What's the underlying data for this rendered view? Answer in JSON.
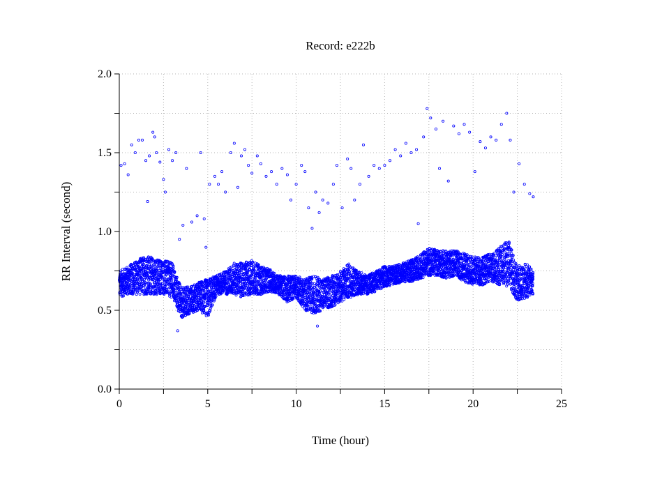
{
  "chart_data": {
    "type": "scatter",
    "title": "Record:  e222b",
    "xlabel": "Time (hour)",
    "ylabel": "RR Interval (second)",
    "xlim": [
      0,
      25
    ],
    "ylim": [
      0,
      2.0
    ],
    "xticks": [
      "0",
      "5",
      "10",
      "15",
      "20",
      "25"
    ],
    "xtick_values": [
      0,
      5,
      10,
      15,
      20,
      25
    ],
    "yticks": [
      "0.0",
      "0.5",
      "1.0",
      "1.5",
      "2.0"
    ],
    "ytick_values": [
      0,
      0.5,
      1.0,
      1.5,
      2.0
    ],
    "grid": true,
    "grid_step_x": 2.5,
    "grid_step_y": 0.25,
    "marker_color": "#0000ff",
    "main_band": {
      "description_note": "dense RR band, low/high envelope per time",
      "x": [
        0,
        0.5,
        1,
        1.5,
        2,
        2.5,
        3,
        3.3,
        3.5,
        4,
        4.5,
        5,
        5.5,
        6,
        6.5,
        7,
        7.5,
        8,
        8.5,
        9,
        9.5,
        10,
        10.5,
        11,
        11.5,
        12,
        12.5,
        13,
        13.5,
        14,
        14.5,
        15,
        15.5,
        16,
        16.5,
        17,
        17.5,
        18,
        18.5,
        19,
        19.5,
        20,
        20.5,
        21,
        21.5,
        22,
        22.5,
        23,
        23.4
      ],
      "low": [
        0.58,
        0.6,
        0.6,
        0.6,
        0.6,
        0.6,
        0.58,
        0.5,
        0.45,
        0.48,
        0.5,
        0.45,
        0.6,
        0.6,
        0.6,
        0.58,
        0.6,
        0.6,
        0.62,
        0.6,
        0.55,
        0.58,
        0.5,
        0.48,
        0.5,
        0.52,
        0.55,
        0.58,
        0.6,
        0.6,
        0.62,
        0.65,
        0.66,
        0.68,
        0.68,
        0.7,
        0.72,
        0.72,
        0.7,
        0.72,
        0.68,
        0.66,
        0.66,
        0.68,
        0.66,
        0.65,
        0.56,
        0.58,
        0.6
      ],
      "high": [
        0.75,
        0.78,
        0.82,
        0.85,
        0.83,
        0.82,
        0.8,
        0.7,
        0.65,
        0.65,
        0.68,
        0.7,
        0.72,
        0.75,
        0.8,
        0.8,
        0.82,
        0.78,
        0.76,
        0.72,
        0.72,
        0.72,
        0.7,
        0.72,
        0.7,
        0.72,
        0.75,
        0.8,
        0.75,
        0.72,
        0.75,
        0.78,
        0.78,
        0.8,
        0.82,
        0.85,
        0.9,
        0.88,
        0.88,
        0.88,
        0.86,
        0.84,
        0.84,
        0.86,
        0.9,
        0.95,
        0.78,
        0.8,
        0.75
      ]
    },
    "outliers": [
      [
        0.1,
        1.42
      ],
      [
        0.3,
        1.43
      ],
      [
        0.5,
        1.36
      ],
      [
        0.7,
        1.55
      ],
      [
        0.9,
        1.5
      ],
      [
        1.1,
        1.58
      ],
      [
        1.3,
        1.58
      ],
      [
        1.5,
        1.45
      ],
      [
        1.6,
        1.19
      ],
      [
        1.7,
        1.48
      ],
      [
        1.9,
        1.63
      ],
      [
        2.0,
        1.6
      ],
      [
        2.1,
        1.5
      ],
      [
        2.3,
        1.44
      ],
      [
        2.5,
        1.33
      ],
      [
        2.6,
        1.25
      ],
      [
        2.8,
        1.52
      ],
      [
        3.0,
        1.45
      ],
      [
        3.2,
        1.5
      ],
      [
        3.4,
        0.95
      ],
      [
        3.6,
        1.04
      ],
      [
        3.8,
        1.4
      ],
      [
        4.1,
        1.06
      ],
      [
        4.4,
        1.1
      ],
      [
        4.6,
        1.5
      ],
      [
        4.8,
        1.08
      ],
      [
        5.1,
        1.3
      ],
      [
        5.4,
        1.35
      ],
      [
        5.6,
        1.3
      ],
      [
        5.8,
        1.38
      ],
      [
        6.0,
        1.25
      ],
      [
        6.3,
        1.5
      ],
      [
        6.5,
        1.56
      ],
      [
        6.7,
        1.28
      ],
      [
        6.9,
        1.48
      ],
      [
        7.1,
        1.52
      ],
      [
        7.3,
        1.42
      ],
      [
        7.5,
        1.37
      ],
      [
        7.8,
        1.48
      ],
      [
        8.0,
        1.43
      ],
      [
        8.3,
        1.35
      ],
      [
        8.6,
        1.38
      ],
      [
        8.9,
        1.3
      ],
      [
        9.2,
        1.4
      ],
      [
        9.5,
        1.36
      ],
      [
        9.7,
        1.2
      ],
      [
        10.0,
        1.3
      ],
      [
        10.3,
        1.42
      ],
      [
        10.5,
        1.38
      ],
      [
        10.7,
        1.15
      ],
      [
        10.9,
        1.02
      ],
      [
        11.1,
        1.25
      ],
      [
        11.3,
        1.12
      ],
      [
        11.5,
        1.2
      ],
      [
        11.8,
        1.18
      ],
      [
        12.1,
        1.3
      ],
      [
        12.3,
        1.42
      ],
      [
        12.6,
        1.15
      ],
      [
        12.9,
        1.46
      ],
      [
        13.1,
        1.4
      ],
      [
        13.3,
        1.2
      ],
      [
        13.6,
        1.3
      ],
      [
        13.8,
        1.55
      ],
      [
        14.1,
        1.35
      ],
      [
        14.4,
        1.42
      ],
      [
        14.7,
        1.4
      ],
      [
        15.0,
        1.42
      ],
      [
        15.3,
        1.45
      ],
      [
        15.6,
        1.52
      ],
      [
        15.9,
        1.48
      ],
      [
        16.2,
        1.56
      ],
      [
        16.5,
        1.5
      ],
      [
        16.8,
        1.52
      ],
      [
        17.2,
        1.6
      ],
      [
        17.4,
        1.78
      ],
      [
        17.6,
        1.72
      ],
      [
        17.9,
        1.65
      ],
      [
        18.1,
        1.4
      ],
      [
        18.3,
        1.7
      ],
      [
        18.6,
        1.32
      ],
      [
        18.9,
        1.67
      ],
      [
        19.2,
        1.62
      ],
      [
        19.5,
        1.68
      ],
      [
        19.8,
        1.63
      ],
      [
        20.1,
        1.38
      ],
      [
        20.4,
        1.57
      ],
      [
        20.7,
        1.53
      ],
      [
        21.0,
        1.6
      ],
      [
        21.3,
        1.58
      ],
      [
        21.6,
        1.68
      ],
      [
        21.9,
        1.75
      ],
      [
        22.1,
        1.58
      ],
      [
        22.3,
        1.25
      ],
      [
        22.6,
        1.43
      ],
      [
        22.9,
        1.3
      ],
      [
        23.2,
        1.24
      ],
      [
        23.4,
        1.22
      ],
      [
        3.3,
        0.37
      ],
      [
        11.2,
        0.4
      ],
      [
        16.9,
        1.05
      ],
      [
        4.9,
        0.9
      ]
    ]
  }
}
